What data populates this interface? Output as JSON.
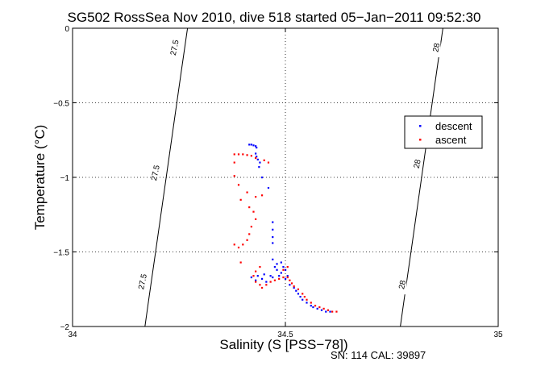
{
  "chart_data": {
    "type": "scatter",
    "title": "SG502 RossSea Nov 2010, dive 518 started 05−Jan−2011 09:52:30",
    "xlabel": "Salinity (S [PSS−78])",
    "ylabel": "Temperature (°C)",
    "footer": "SN: 114  CAL: 39897",
    "xlim": [
      34,
      35
    ],
    "ylim": [
      -2,
      0
    ],
    "x_ticks": [
      34,
      34.5,
      35
    ],
    "x_tick_labels": [
      "34",
      "34.5",
      "35"
    ],
    "y_ticks": [
      0,
      -0.5,
      -1,
      -1.5,
      -2
    ],
    "y_tick_labels": [
      "0",
      "−0.5",
      "−1",
      "−1.5",
      "−2"
    ],
    "grid": true,
    "legend_position": "upper-right",
    "series": [
      {
        "name": "descent",
        "color": "#0000ff",
        "points": [
          [
            34.415,
            -0.78
          ],
          [
            34.42,
            -0.78
          ],
          [
            34.425,
            -0.785
          ],
          [
            34.43,
            -0.79
          ],
          [
            34.432,
            -0.8
          ],
          [
            34.43,
            -0.84
          ],
          [
            34.432,
            -0.86
          ],
          [
            34.435,
            -0.88
          ],
          [
            34.44,
            -0.9
          ],
          [
            34.438,
            -0.93
          ],
          [
            34.445,
            -1.0
          ],
          [
            34.46,
            -1.07
          ],
          [
            34.47,
            -1.3
          ],
          [
            34.47,
            -1.35
          ],
          [
            34.47,
            -1.4
          ],
          [
            34.47,
            -1.44
          ],
          [
            34.47,
            -1.55
          ],
          [
            34.475,
            -1.6
          ],
          [
            34.48,
            -1.58
          ],
          [
            34.49,
            -1.57
          ],
          [
            34.495,
            -1.6
          ],
          [
            34.5,
            -1.62
          ],
          [
            34.505,
            -1.66
          ],
          [
            34.49,
            -1.64
          ],
          [
            34.48,
            -1.62
          ],
          [
            34.465,
            -1.66
          ],
          [
            34.45,
            -1.65
          ],
          [
            34.435,
            -1.66
          ],
          [
            34.42,
            -1.67
          ],
          [
            34.43,
            -1.69
          ],
          [
            34.445,
            -1.68
          ],
          [
            34.455,
            -1.7
          ],
          [
            34.47,
            -1.67
          ],
          [
            34.485,
            -1.66
          ],
          [
            34.5,
            -1.68
          ],
          [
            34.51,
            -1.72
          ],
          [
            34.52,
            -1.74
          ],
          [
            34.525,
            -1.76
          ],
          [
            34.53,
            -1.78
          ],
          [
            34.535,
            -1.8
          ],
          [
            34.54,
            -1.82
          ],
          [
            34.55,
            -1.84
          ],
          [
            34.56,
            -1.86
          ],
          [
            34.565,
            -1.87
          ],
          [
            34.575,
            -1.88
          ],
          [
            34.585,
            -1.89
          ],
          [
            34.595,
            -1.9
          ],
          [
            34.605,
            -1.9
          ]
        ]
      },
      {
        "name": "ascent",
        "color": "#ff0000",
        "points": [
          [
            34.38,
            -0.845
          ],
          [
            34.39,
            -0.845
          ],
          [
            34.4,
            -0.845
          ],
          [
            34.41,
            -0.85
          ],
          [
            34.42,
            -0.855
          ],
          [
            34.43,
            -0.87
          ],
          [
            34.45,
            -0.885
          ],
          [
            34.46,
            -0.9
          ],
          [
            34.38,
            -0.9
          ],
          [
            34.38,
            -0.99
          ],
          [
            34.39,
            -1.05
          ],
          [
            34.395,
            -1.15
          ],
          [
            34.41,
            -1.1
          ],
          [
            34.43,
            -1.13
          ],
          [
            34.445,
            -1.12
          ],
          [
            34.415,
            -1.2
          ],
          [
            34.425,
            -1.23
          ],
          [
            34.43,
            -1.28
          ],
          [
            34.42,
            -1.33
          ],
          [
            34.415,
            -1.38
          ],
          [
            34.41,
            -1.42
          ],
          [
            34.4,
            -1.45
          ],
          [
            34.39,
            -1.47
          ],
          [
            34.38,
            -1.45
          ],
          [
            34.395,
            -1.57
          ],
          [
            34.44,
            -1.6
          ],
          [
            34.43,
            -1.63
          ],
          [
            34.425,
            -1.66
          ],
          [
            34.43,
            -1.7
          ],
          [
            34.44,
            -1.72
          ],
          [
            34.445,
            -1.74
          ],
          [
            34.455,
            -1.72
          ],
          [
            34.465,
            -1.7
          ],
          [
            34.475,
            -1.69
          ],
          [
            34.485,
            -1.68
          ],
          [
            34.495,
            -1.67
          ],
          [
            34.505,
            -1.67
          ],
          [
            34.51,
            -1.69
          ],
          [
            34.515,
            -1.71
          ],
          [
            34.52,
            -1.73
          ],
          [
            34.53,
            -1.75
          ],
          [
            34.54,
            -1.78
          ],
          [
            34.545,
            -1.8
          ],
          [
            34.55,
            -1.82
          ],
          [
            34.56,
            -1.84
          ],
          [
            34.57,
            -1.86
          ],
          [
            34.58,
            -1.87
          ],
          [
            34.59,
            -1.88
          ],
          [
            34.6,
            -1.89
          ],
          [
            34.61,
            -1.9
          ],
          [
            34.62,
            -1.9
          ],
          [
            34.505,
            -1.6
          ],
          [
            34.495,
            -1.62
          ]
        ]
      }
    ],
    "contours": [
      {
        "label": "27.5",
        "points": [
          [
            34.27,
            0
          ],
          [
            34.255,
            -0.3
          ],
          [
            34.24,
            -0.6
          ],
          [
            34.225,
            -0.9
          ],
          [
            34.21,
            -1.2
          ],
          [
            34.195,
            -1.5
          ],
          [
            34.18,
            -1.8
          ],
          [
            34.17,
            -2
          ]
        ],
        "label_at": [
          [
            34.24,
            -0.13
          ],
          [
            34.195,
            -0.97
          ],
          [
            34.165,
            -1.7
          ]
        ]
      },
      {
        "label": "28",
        "points": [
          [
            34.87,
            0
          ],
          [
            34.855,
            -0.3
          ],
          [
            34.84,
            -0.6
          ],
          [
            34.825,
            -0.9
          ],
          [
            34.81,
            -1.2
          ],
          [
            34.795,
            -1.5
          ],
          [
            34.78,
            -1.8
          ],
          [
            34.77,
            -2
          ]
        ],
        "label_at": [
          [
            34.855,
            -0.13
          ],
          [
            34.81,
            -0.91
          ],
          [
            34.775,
            -1.72
          ]
        ]
      }
    ]
  }
}
